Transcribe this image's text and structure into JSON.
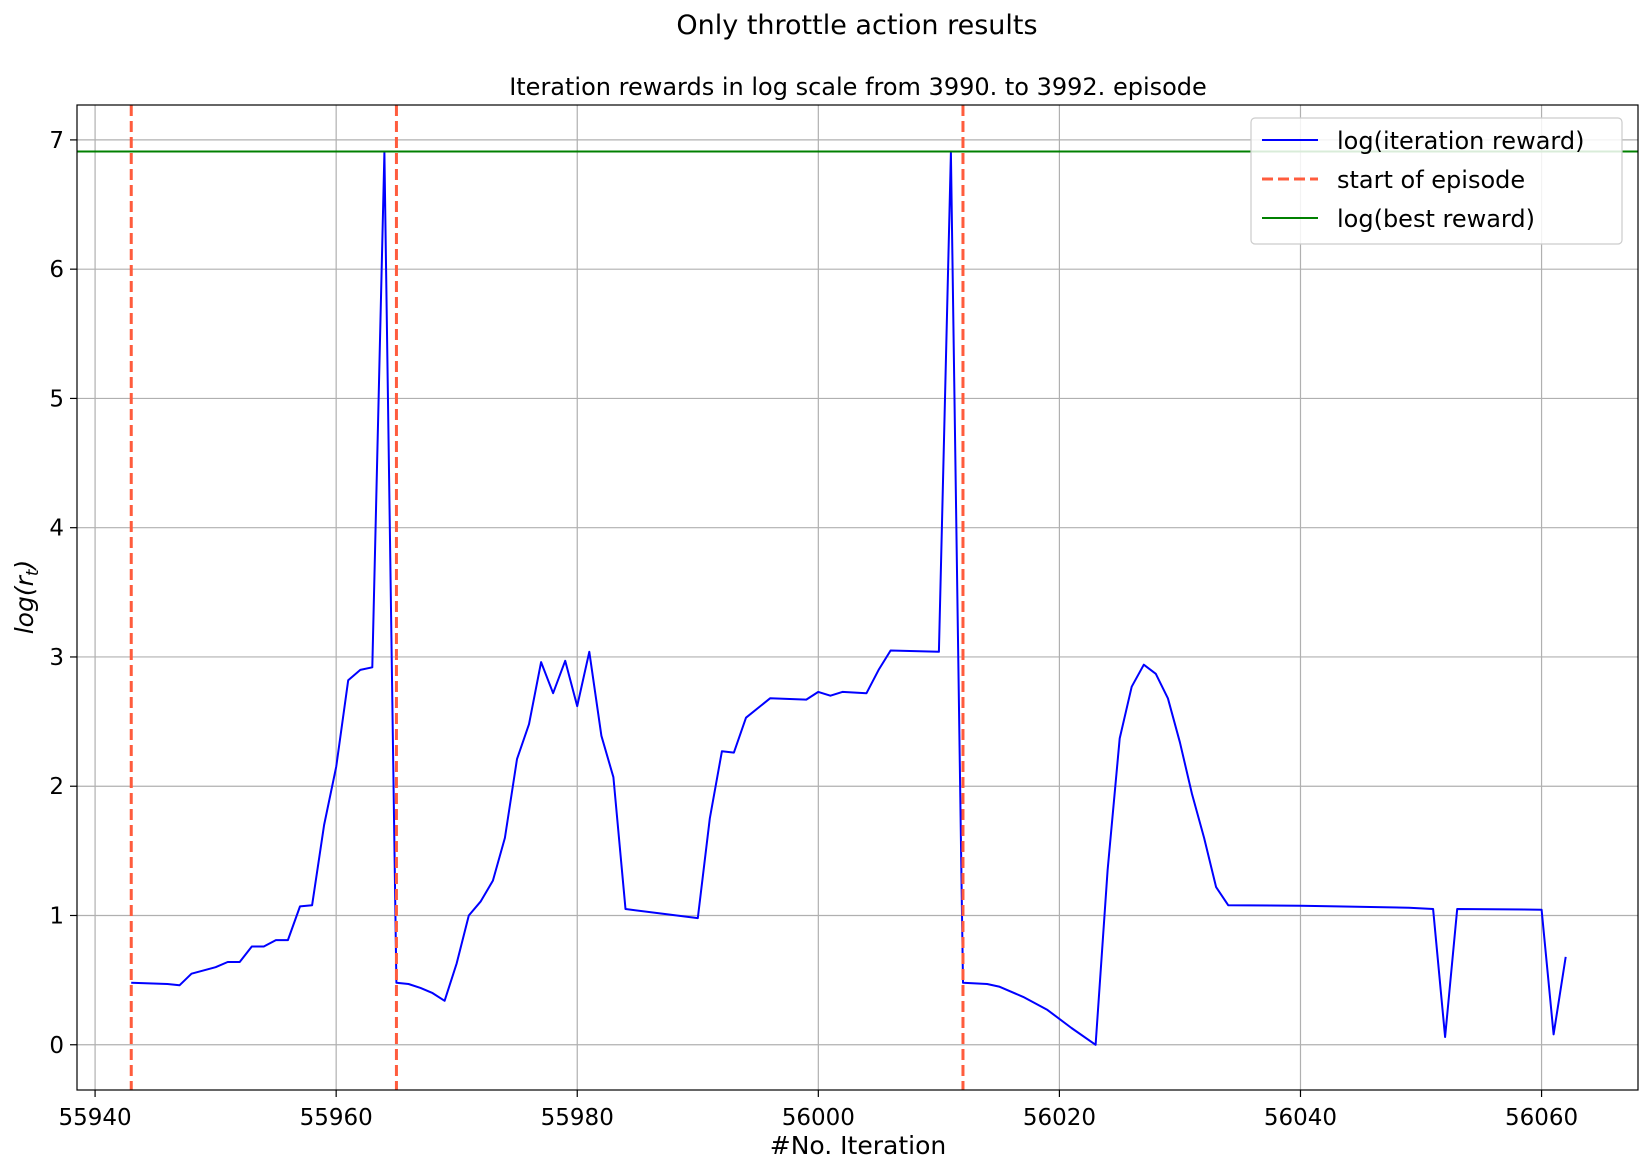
{
  "figure": {
    "suptitle": "Only throttle action results"
  },
  "chart_data": {
    "type": "line",
    "title": "Iteration rewards in log scale from 3990. to 3992. episode",
    "xlabel": "#No. Iteration",
    "ylabel": "log(r",
    "ylabel_sub": "t",
    "ylabel_close": ")",
    "xlim": [
      55938.5,
      56068
    ],
    "ylim": [
      -0.35,
      7.27
    ],
    "x_ticks": [
      55940,
      55960,
      55980,
      56000,
      56020,
      56040,
      56060
    ],
    "y_ticks": [
      0,
      1,
      2,
      3,
      4,
      5,
      6,
      7
    ],
    "grid": true,
    "legend_position": "top-right",
    "legend": [
      {
        "label": "log(iteration reward)",
        "color": "#0000ff",
        "style": "solid"
      },
      {
        "label": "start of episode",
        "color": "#ff5c3d",
        "style": "dashed"
      },
      {
        "label": "log(best reward)",
        "color": "#008000",
        "style": "solid"
      }
    ],
    "series": [
      {
        "name": "log(iteration reward)",
        "color": "#0000ff",
        "points": [
          [
            55943,
            0.48
          ],
          [
            55946,
            0.47
          ],
          [
            55947,
            0.46
          ],
          [
            55948,
            0.55
          ],
          [
            55950,
            0.6
          ],
          [
            55951,
            0.64
          ],
          [
            55952,
            0.64
          ],
          [
            55953,
            0.76
          ],
          [
            55954,
            0.76
          ],
          [
            55955,
            0.81
          ],
          [
            55956,
            0.81
          ],
          [
            55957,
            1.07
          ],
          [
            55958,
            1.08
          ],
          [
            55959,
            1.7
          ],
          [
            55960,
            2.15
          ],
          [
            55961,
            2.82
          ],
          [
            55962,
            2.9
          ],
          [
            55963,
            2.92
          ],
          [
            55964,
            6.9
          ],
          [
            55965,
            0.48
          ],
          [
            55966,
            0.47
          ],
          [
            55967,
            0.44
          ],
          [
            55968,
            0.4
          ],
          [
            55969,
            0.34
          ],
          [
            55970,
            0.63
          ],
          [
            55971,
            1.0
          ],
          [
            55972,
            1.11
          ],
          [
            55973,
            1.27
          ],
          [
            55974,
            1.6
          ],
          [
            55975,
            2.21
          ],
          [
            55976,
            2.48
          ],
          [
            55977,
            2.96
          ],
          [
            55978,
            2.72
          ],
          [
            55979,
            2.97
          ],
          [
            55980,
            2.62
          ],
          [
            55981,
            3.04
          ],
          [
            55982,
            2.39
          ],
          [
            55983,
            2.07
          ],
          [
            55984,
            1.05
          ],
          [
            55990,
            0.98
          ],
          [
            55991,
            1.75
          ],
          [
            55992,
            2.27
          ],
          [
            55993,
            2.26
          ],
          [
            55994,
            2.53
          ],
          [
            55996,
            2.68
          ],
          [
            55999,
            2.67
          ],
          [
            56000,
            2.73
          ],
          [
            56001,
            2.7
          ],
          [
            56002,
            2.73
          ],
          [
            56004,
            2.72
          ],
          [
            56005,
            2.9
          ],
          [
            56006,
            3.05
          ],
          [
            56010,
            3.04
          ],
          [
            56011,
            6.9
          ],
          [
            56012,
            0.48
          ],
          [
            56014,
            0.47
          ],
          [
            56015,
            0.45
          ],
          [
            56017,
            0.37
          ],
          [
            56019,
            0.27
          ],
          [
            56021,
            0.13
          ],
          [
            56023,
            0.0
          ],
          [
            56024,
            1.35
          ],
          [
            56025,
            2.37
          ],
          [
            56026,
            2.77
          ],
          [
            56027,
            2.94
          ],
          [
            56028,
            2.87
          ],
          [
            56029,
            2.68
          ],
          [
            56030,
            2.34
          ],
          [
            56031,
            1.94
          ],
          [
            56032,
            1.6
          ],
          [
            56033,
            1.22
          ],
          [
            56034,
            1.08
          ],
          [
            56040,
            1.075
          ],
          [
            56043,
            1.07
          ],
          [
            56049,
            1.06
          ],
          [
            56051,
            1.05
          ],
          [
            56052,
            0.06
          ],
          [
            56053,
            1.05
          ],
          [
            56060,
            1.045
          ],
          [
            56061,
            0.08
          ],
          [
            56062,
            0.68
          ]
        ]
      },
      {
        "name": "start of episode",
        "color": "#ff5c3d",
        "x_positions": [
          55943,
          55965,
          56012
        ]
      },
      {
        "name": "log(best reward)",
        "color": "#008000",
        "y_value": 6.91
      }
    ]
  }
}
